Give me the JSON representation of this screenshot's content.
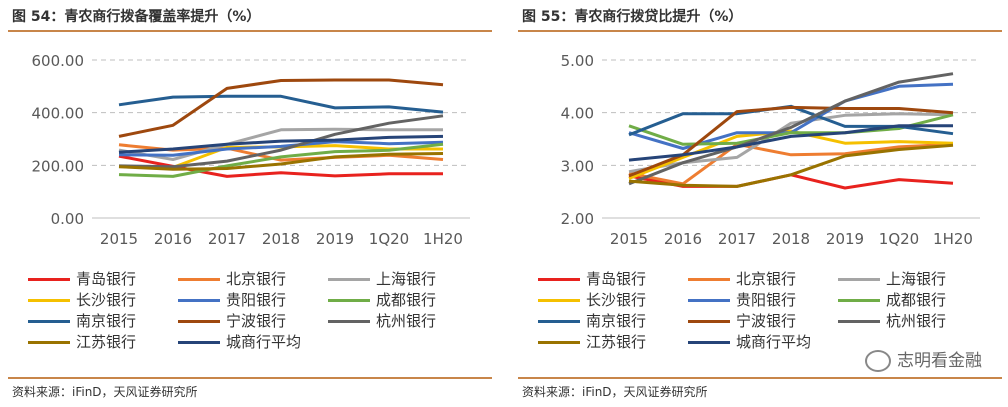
{
  "charts": [
    {
      "title": "图 54：青农商行拨备覆盖率提升（%）",
      "source": "资料来源：iFinD，天风证券研究所",
      "chart_data": {
        "type": "line",
        "categories": [
          "2015",
          "2016",
          "2017",
          "2018",
          "2019",
          "1Q20",
          "1H20"
        ],
        "ylim": [
          0,
          600
        ],
        "yticks": [
          "0.00",
          "200.00",
          "400.00",
          "600.00"
        ],
        "ytick_values": [
          0,
          200,
          400,
          600
        ],
        "grid": "horizontal-dashed",
        "series": [
          {
            "name": "青岛银行",
            "color": "#e8221e",
            "values": [
              235,
              196,
              158,
              172,
              160,
              168,
              168
            ]
          },
          {
            "name": "北京银行",
            "color": "#ee7d31",
            "values": [
              278,
              258,
              265,
              220,
              230,
              238,
              222
            ]
          },
          {
            "name": "上海银行",
            "color": "#a5a5a5",
            "values": [
              258,
              222,
              280,
              335,
              337,
              335,
              335
            ]
          },
          {
            "name": "长沙银行",
            "color": "#f5c000",
            "values": [
              196,
              192,
              268,
              270,
              275,
              262,
              262
            ]
          },
          {
            "name": "贵阳银行",
            "color": "#4472c4",
            "values": [
              240,
              238,
              262,
              272,
              290,
              282,
              288
            ]
          },
          {
            "name": "成都银行",
            "color": "#70ad47",
            "values": [
              165,
              158,
              198,
              232,
              252,
              257,
              280
            ]
          },
          {
            "name": "南京银行",
            "color": "#255e91",
            "values": [
              430,
              459,
              462,
              462,
              418,
              422,
              402
            ]
          },
          {
            "name": "宁波银行",
            "color": "#9e480e",
            "values": [
              310,
              352,
              492,
              522,
              524,
              524,
              506
            ]
          },
          {
            "name": "杭州银行",
            "color": "#636363",
            "values": [
              198,
              195,
              216,
              258,
              318,
              360,
              388
            ]
          },
          {
            "name": "江苏银行",
            "color": "#997300",
            "values": [
              195,
              185,
              188,
              205,
              232,
              242,
              245
            ]
          },
          {
            "name": "城商行平均",
            "color": "#264478",
            "values": [
              250,
              262,
              280,
              292,
              296,
              306,
              310
            ]
          }
        ]
      }
    },
    {
      "title": "图 55：青农商行拨贷比提升（%）",
      "source": "资料来源：iFinD，天风证券研究所",
      "chart_data": {
        "type": "line",
        "categories": [
          "2015",
          "2016",
          "2017",
          "2018",
          "2019",
          "1Q20",
          "1H20"
        ],
        "ylim": [
          2,
          5
        ],
        "yticks": [
          "2.00",
          "3.00",
          "4.00",
          "5.00"
        ],
        "ytick_values": [
          2,
          3,
          4,
          5
        ],
        "grid": "horizontal-dashed",
        "series": [
          {
            "name": "青岛银行",
            "color": "#e8221e",
            "values": [
              2.8,
              2.6,
              2.6,
              2.82,
              2.57,
              2.73,
              2.66
            ]
          },
          {
            "name": "北京银行",
            "color": "#ee7d31",
            "values": [
              2.85,
              2.65,
              3.4,
              3.2,
              3.22,
              3.35,
              3.4
            ]
          },
          {
            "name": "上海银行",
            "color": "#a5a5a5",
            "values": [
              2.88,
              3.05,
              3.15,
              3.8,
              3.95,
              3.98,
              3.96
            ]
          },
          {
            "name": "长沙银行",
            "color": "#f5c000",
            "values": [
              2.75,
              3.15,
              3.55,
              3.65,
              3.42,
              3.45,
              3.42
            ]
          },
          {
            "name": "贵阳银行",
            "color": "#4472c4",
            "values": [
              3.62,
              3.32,
              3.62,
              3.62,
              4.22,
              4.5,
              4.54
            ]
          },
          {
            "name": "成都银行",
            "color": "#70ad47",
            "values": [
              3.75,
              3.4,
              3.42,
              3.62,
              3.62,
              3.7,
              3.96
            ]
          },
          {
            "name": "南京银行",
            "color": "#255e91",
            "values": [
              3.58,
              3.98,
              3.98,
              4.12,
              3.74,
              3.74,
              3.6
            ]
          },
          {
            "name": "宁波银行",
            "color": "#9e480e",
            "values": [
              2.8,
              3.2,
              4.02,
              4.1,
              4.08,
              4.08,
              4.0
            ]
          },
          {
            "name": "杭州银行",
            "color": "#636363",
            "values": [
              2.65,
              3.05,
              3.35,
              3.72,
              4.22,
              4.58,
              4.74
            ]
          },
          {
            "name": "江苏银行",
            "color": "#997300",
            "values": [
              2.7,
              2.62,
              2.6,
              2.82,
              3.18,
              3.3,
              3.38
            ]
          },
          {
            "name": "城商行平均",
            "color": "#264478",
            "values": [
              3.1,
              3.2,
              3.35,
              3.55,
              3.62,
              3.75,
              3.75
            ]
          }
        ]
      }
    }
  ],
  "watermark": "志明看金融"
}
